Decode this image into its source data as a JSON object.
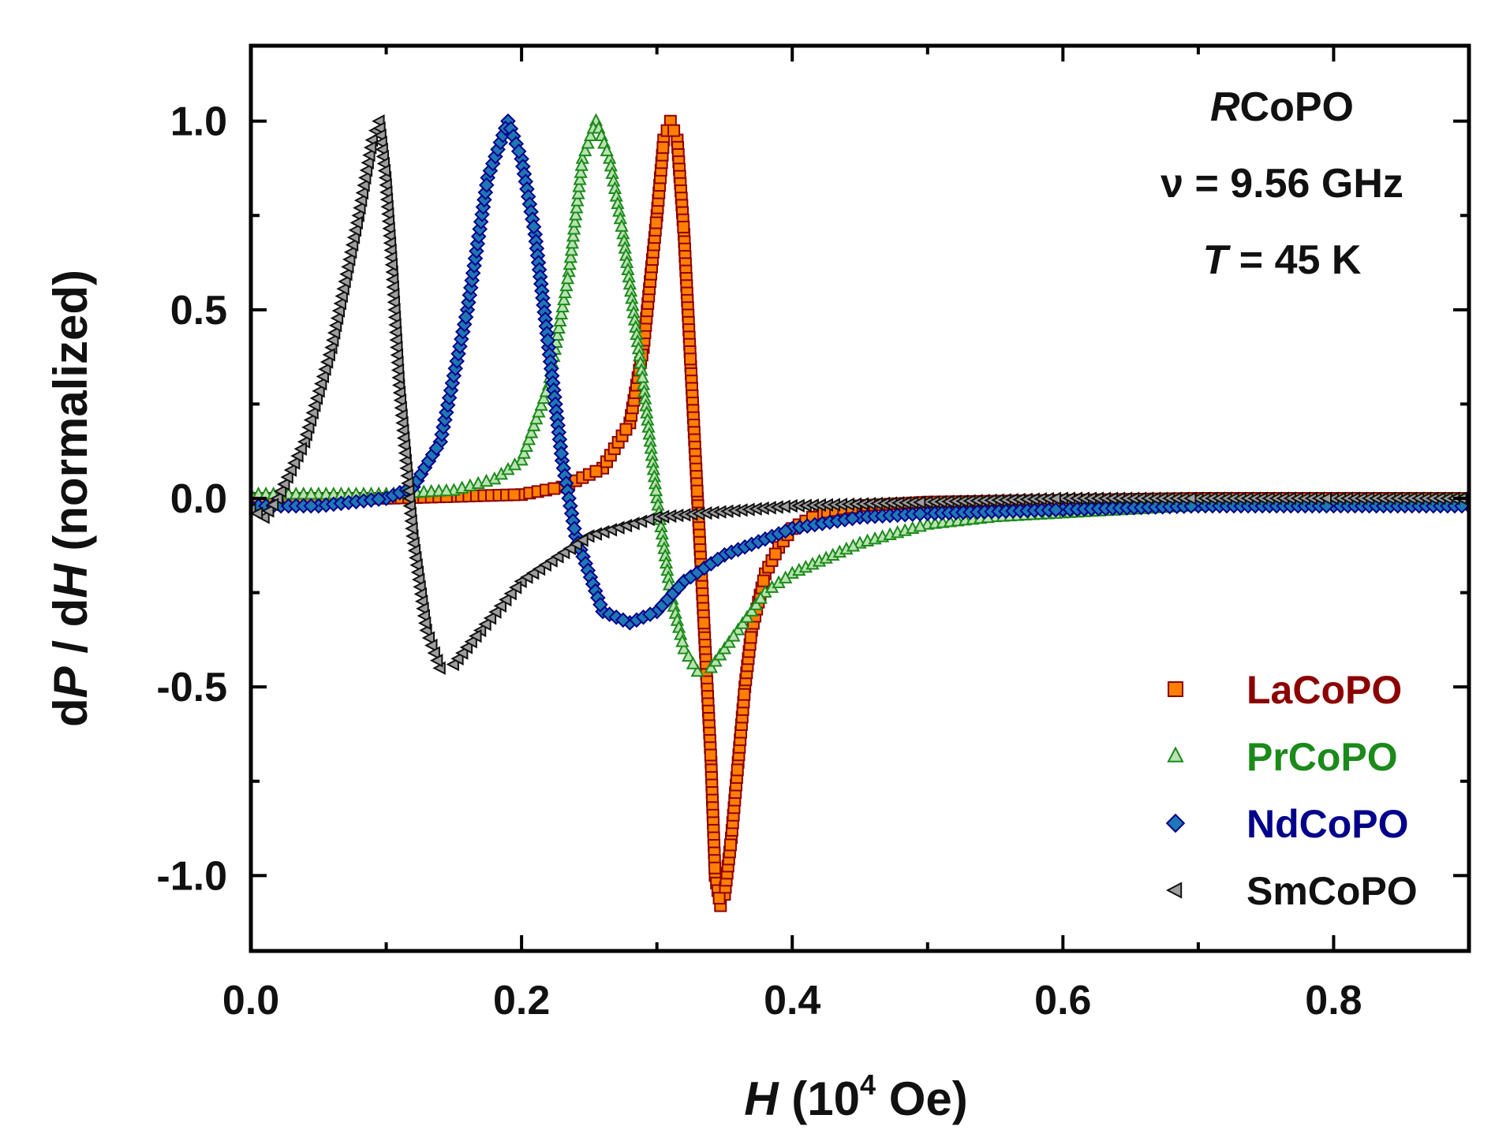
{
  "chart_data": {
    "type": "scatter",
    "title": "",
    "xlabel": {
      "italic": "H",
      "prefix": " (10",
      "superscript": "4",
      "suffix": " Oe)"
    },
    "ylabel": {
      "part1": "d",
      "italic1": "P",
      "part2": " / d",
      "italic2": "H",
      "part3": " (normalized)"
    },
    "xlim": [
      0,
      0.9
    ],
    "ylim": [
      -1.2,
      1.2
    ],
    "xticks": [
      0.0,
      0.2,
      0.4,
      0.6,
      0.8
    ],
    "xtick_labels": [
      "0.0",
      "0.2",
      "0.4",
      "0.6",
      "0.8"
    ],
    "yticks": [
      -1.0,
      -0.5,
      0.0,
      0.5,
      1.0
    ],
    "ytick_labels": [
      "-1.0",
      "-0.5",
      "0.0",
      "0.5",
      "1.0"
    ],
    "annotations": {
      "material_italic": "R",
      "material_rest": "CoPO",
      "frequency": "ν = 9.56 GHz",
      "temp_italic": "T",
      "temp_rest": " = 45 K"
    },
    "legend_position": "bottom-right",
    "series": [
      {
        "name": "LaCoPO",
        "marker": "square",
        "color": "#ff7f00",
        "edge": "#8b0000",
        "label_color": "#8b0000",
        "x": [
          0.0,
          0.05,
          0.1,
          0.15,
          0.2,
          0.23,
          0.26,
          0.28,
          0.29,
          0.3,
          0.305,
          0.31,
          0.315,
          0.32,
          0.325,
          0.33,
          0.335,
          0.34,
          0.343,
          0.347,
          0.35,
          0.355,
          0.36,
          0.365,
          0.37,
          0.38,
          0.39,
          0.4,
          0.42,
          0.45,
          0.5,
          0.6,
          0.7,
          0.8,
          0.9
        ],
        "y": [
          0.0,
          0.0,
          0.0,
          0.005,
          0.01,
          0.03,
          0.08,
          0.2,
          0.4,
          0.75,
          0.95,
          1.0,
          0.95,
          0.7,
          0.35,
          0.0,
          -0.35,
          -0.7,
          -1.0,
          -1.08,
          -1.05,
          -0.9,
          -0.7,
          -0.5,
          -0.35,
          -0.2,
          -0.13,
          -0.08,
          -0.04,
          -0.02,
          -0.01,
          -0.005,
          0.0,
          0.0,
          0.0
        ]
      },
      {
        "name": "PrCoPO",
        "marker": "triangle-up",
        "color": "#b9e3b0",
        "edge": "#1b8a1b",
        "label_color": "#1b8a1b",
        "x": [
          0.0,
          0.05,
          0.1,
          0.15,
          0.18,
          0.2,
          0.22,
          0.235,
          0.245,
          0.255,
          0.265,
          0.275,
          0.29,
          0.3,
          0.31,
          0.32,
          0.33,
          0.34,
          0.36,
          0.38,
          0.4,
          0.45,
          0.5,
          0.55,
          0.6,
          0.7,
          0.8,
          0.9
        ],
        "y": [
          0.01,
          0.01,
          0.01,
          0.02,
          0.05,
          0.1,
          0.3,
          0.6,
          0.9,
          1.0,
          0.9,
          0.7,
          0.3,
          0.0,
          -0.25,
          -0.4,
          -0.46,
          -0.45,
          -0.35,
          -0.25,
          -0.2,
          -0.12,
          -0.07,
          -0.05,
          -0.04,
          -0.02,
          -0.01,
          -0.005
        ]
      },
      {
        "name": "NdCoPO",
        "marker": "diamond",
        "color": "#1f77b4",
        "edge": "#00008b",
        "label_color": "#00008b",
        "x": [
          0.0,
          0.05,
          0.1,
          0.12,
          0.14,
          0.16,
          0.175,
          0.19,
          0.2,
          0.21,
          0.22,
          0.23,
          0.24,
          0.26,
          0.28,
          0.3,
          0.32,
          0.35,
          0.4,
          0.45,
          0.5,
          0.6,
          0.7,
          0.8,
          0.9
        ],
        "y": [
          -0.02,
          -0.02,
          0.0,
          0.03,
          0.15,
          0.5,
          0.85,
          1.0,
          0.9,
          0.7,
          0.4,
          0.1,
          -0.1,
          -0.3,
          -0.33,
          -0.3,
          -0.22,
          -0.15,
          -0.08,
          -0.05,
          -0.04,
          -0.03,
          -0.02,
          -0.02,
          -0.02
        ]
      },
      {
        "name": "SmCoPO",
        "marker": "triangle-left",
        "color": "#9e9e9e",
        "edge": "#111111",
        "label_color": "#111111",
        "x": [
          0.0,
          0.01,
          0.02,
          0.04,
          0.06,
          0.08,
          0.09,
          0.095,
          0.1,
          0.105,
          0.11,
          0.115,
          0.12,
          0.13,
          0.14,
          0.15,
          0.17,
          0.2,
          0.25,
          0.3,
          0.4,
          0.5,
          0.6,
          0.7,
          0.8,
          0.9
        ],
        "y": [
          -0.03,
          -0.05,
          0.0,
          0.15,
          0.4,
          0.75,
          0.95,
          1.0,
          0.85,
          0.6,
          0.3,
          0.1,
          -0.1,
          -0.35,
          -0.45,
          -0.44,
          -0.35,
          -0.22,
          -0.1,
          -0.05,
          -0.02,
          -0.01,
          0.0,
          0.0,
          0.0,
          0.0
        ]
      }
    ]
  }
}
